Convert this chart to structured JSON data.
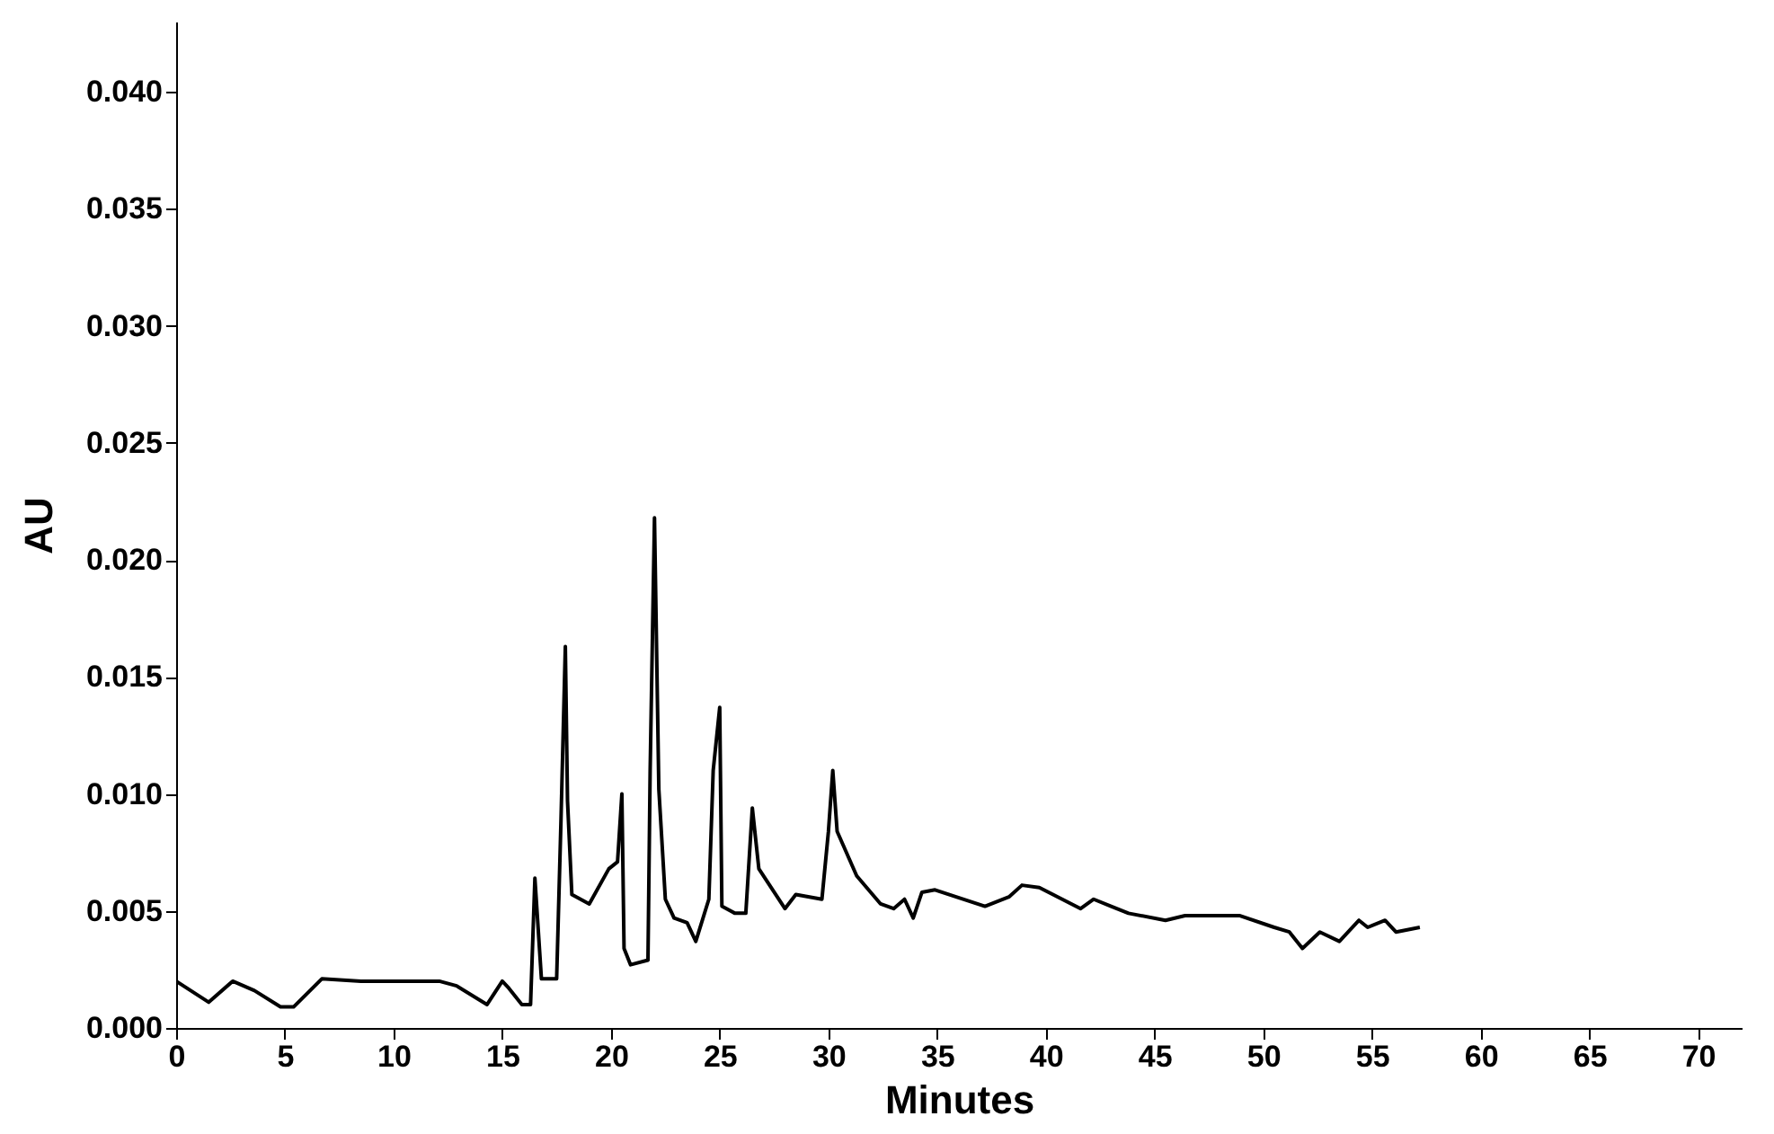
{
  "chart_data": {
    "type": "line",
    "xlabel": "Minutes",
    "ylabel": "AU",
    "xlim": [
      0,
      72
    ],
    "xticks": [
      0,
      5,
      10,
      15,
      20,
      25,
      30,
      35,
      40,
      45,
      50,
      55,
      60,
      65,
      70
    ],
    "ylim": [
      0,
      0.043
    ],
    "yticks": [
      {
        "value": 0,
        "label": "0.000"
      },
      {
        "value": 0.005,
        "label": "0.005"
      },
      {
        "value": 0.01,
        "label": "0.010"
      },
      {
        "value": 0.015,
        "label": "0.015"
      },
      {
        "value": 0.02,
        "label": "0.020"
      },
      {
        "value": 0.025,
        "label": "0.025"
      },
      {
        "value": 0.03,
        "label": "0.030"
      },
      {
        "value": 0.035,
        "label": "0.035"
      },
      {
        "value": 0.04,
        "label": "0.040"
      }
    ],
    "grid": false,
    "marker": "none",
    "line_style": "solid",
    "series": [
      {
        "color": "#000000",
        "x": [
          0,
          1.5,
          2.6,
          3.6,
          4.8,
          5.4,
          6.7,
          8.5,
          9.6,
          12.1,
          12.9,
          14.3,
          15,
          15.3,
          15.9,
          16.3,
          16.5,
          16.8,
          17.5,
          17.7,
          17.9,
          18.0,
          18.2,
          19.0,
          19.9,
          20.3,
          20.5,
          20.6,
          20.9,
          21.7,
          21.8,
          22.0,
          22.2,
          22.5,
          22.9,
          23.5,
          23.9,
          24.5,
          24.7,
          25.0,
          25.1,
          25.7,
          26.2,
          26.5,
          26.8,
          28.0,
          28.5,
          29.7,
          30.0,
          30.2,
          30.4,
          31.3,
          32.4,
          33.0,
          33.5,
          33.9,
          34.3,
          34.9,
          37.2,
          38.3,
          38.9,
          39.7,
          41.6,
          42.2,
          43.0,
          43.8,
          45.5,
          46.4,
          48.9,
          50.5,
          51.2,
          51.8,
          52.6,
          53.5,
          54.4,
          54.8,
          55.6,
          56.1,
          57.2
        ],
        "values": [
          0.002,
          0.0011,
          0.002,
          0.0016,
          0.0009,
          0.0009,
          0.0021,
          0.002,
          0.002,
          0.002,
          0.0018,
          0.001,
          0.002,
          0.0017,
          0.001,
          0.001,
          0.0064,
          0.0021,
          0.0021,
          0.0089,
          0.0163,
          0.0097,
          0.0057,
          0.0053,
          0.0068,
          0.0071,
          0.01,
          0.0034,
          0.0027,
          0.0029,
          0.011,
          0.0218,
          0.0102,
          0.0055,
          0.0047,
          0.0045,
          0.0037,
          0.0055,
          0.011,
          0.0137,
          0.0052,
          0.0049,
          0.0049,
          0.0094,
          0.0068,
          0.0051,
          0.0057,
          0.0055,
          0.0084,
          0.011,
          0.0084,
          0.0065,
          0.0053,
          0.0051,
          0.0055,
          0.0047,
          0.0058,
          0.0059,
          0.0052,
          0.0056,
          0.0061,
          0.006,
          0.0051,
          0.0055,
          0.0052,
          0.0049,
          0.0046,
          0.0048,
          0.0048,
          0.0043,
          0.0041,
          0.0034,
          0.0041,
          0.0037,
          0.0046,
          0.0043,
          0.0046,
          0.0041,
          0.0043
        ]
      }
    ]
  }
}
